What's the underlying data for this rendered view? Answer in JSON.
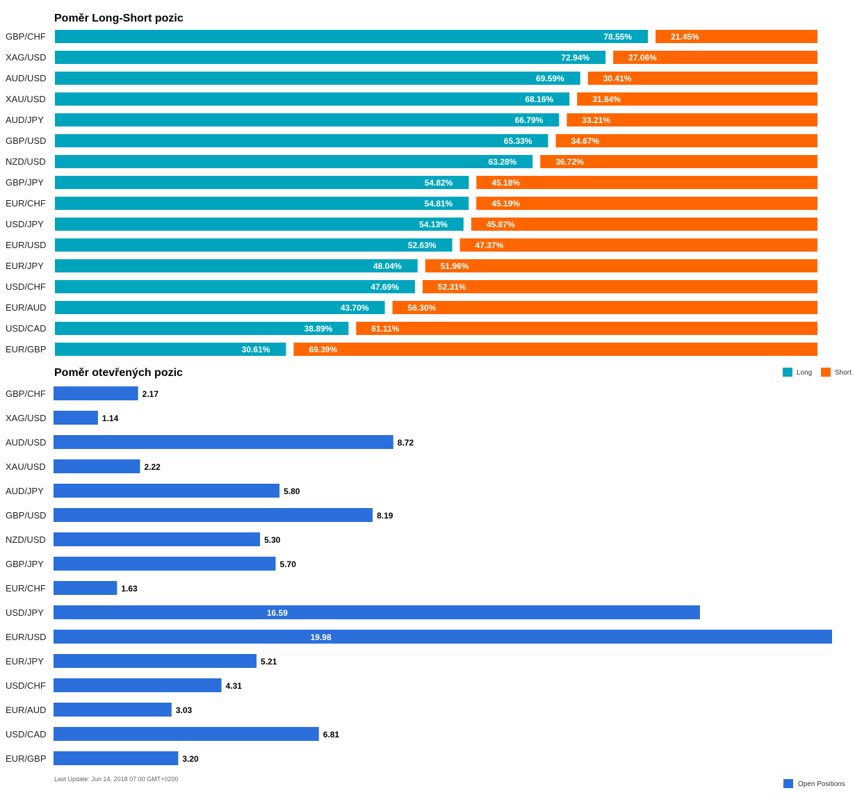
{
  "footer": "Last Update: Jun 14, 2018 07:00 GMT+0200",
  "colors": {
    "long": "#00a5bd",
    "short": "#ff6600",
    "open": "#2a6fdb"
  },
  "chart_data": [
    {
      "type": "bar",
      "stacked": true,
      "orientation": "horizontal",
      "title": "Poměr Long-Short pozic",
      "categories": [
        "GBP/CHF",
        "XAG/USD",
        "AUD/USD",
        "XAU/USD",
        "AUD/JPY",
        "GBP/USD",
        "NZD/USD",
        "GBP/JPY",
        "EUR/CHF",
        "USD/JPY",
        "EUR/USD",
        "EUR/JPY",
        "USD/CHF",
        "EUR/AUD",
        "USD/CAD",
        "EUR/GBP"
      ],
      "series": [
        {
          "name": "Long",
          "color": "#00a5bd",
          "values": [
            78.55,
            72.94,
            69.59,
            68.16,
            66.79,
            65.33,
            63.28,
            54.82,
            54.81,
            54.13,
            52.63,
            48.04,
            47.69,
            43.7,
            38.89,
            30.61
          ]
        },
        {
          "name": "Short",
          "color": "#ff6600",
          "values": [
            21.45,
            27.06,
            30.41,
            31.84,
            33.21,
            34.67,
            36.72,
            45.18,
            45.19,
            45.87,
            47.37,
            51.96,
            52.31,
            56.3,
            61.11,
            69.39
          ]
        }
      ],
      "value_labels": {
        "Long": [
          "78.55%",
          "72.94%",
          "69.59%",
          "68.16%",
          "66.79%",
          "65.33%",
          "63.28%",
          "54.82%",
          "54.81%",
          "54.13%",
          "52.63%",
          "48.04%",
          "47.69%",
          "43.70%",
          "38.89%",
          "30.61%"
        ],
        "Short": [
          "21.45%",
          "27.06%",
          "30.41%",
          "31.84%",
          "33.21%",
          "34.67%",
          "36.72%",
          "45.18%",
          "45.19%",
          "45.87%",
          "47.37%",
          "51.96%",
          "52.31%",
          "56.30%",
          "61.11%",
          "69.39%"
        ]
      },
      "xlim": [
        0,
        100
      ],
      "grid": false,
      "legend": "bottom-right"
    },
    {
      "type": "bar",
      "orientation": "horizontal",
      "title": "Poměr otevřených pozic",
      "categories": [
        "GBP/CHF",
        "XAG/USD",
        "AUD/USD",
        "XAU/USD",
        "AUD/JPY",
        "GBP/USD",
        "NZD/USD",
        "GBP/JPY",
        "EUR/CHF",
        "USD/JPY",
        "EUR/USD",
        "EUR/JPY",
        "USD/CHF",
        "EUR/AUD",
        "USD/CAD",
        "EUR/GBP"
      ],
      "series": [
        {
          "name": "Open Positions",
          "color": "#2a6fdb",
          "values": [
            2.17,
            1.14,
            8.72,
            2.22,
            5.8,
            8.19,
            5.3,
            5.7,
            1.63,
            16.59,
            19.98,
            5.21,
            4.31,
            3.03,
            6.81,
            3.2
          ]
        }
      ],
      "value_labels": [
        "2.17",
        "1.14",
        "8.72",
        "2.22",
        "5.80",
        "8.19",
        "5.30",
        "5.70",
        "1.63",
        "16.59",
        "19.98",
        "5.21",
        "4.31",
        "3.03",
        "6.81",
        "3.20"
      ],
      "xlim": [
        0,
        20
      ],
      "grid": false,
      "legend": "bottom-right"
    }
  ]
}
